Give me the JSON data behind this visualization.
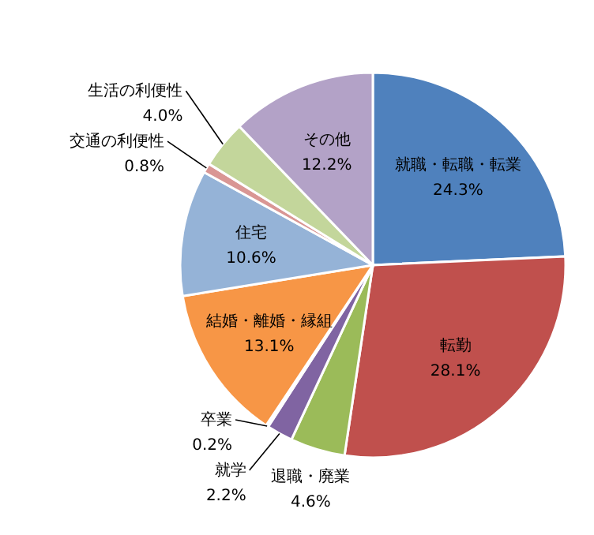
{
  "chart_data": {
    "type": "pie",
    "categories": [
      "就職・転職・転業",
      "転勤",
      "退職・廃業",
      "就学",
      "卒業",
      "結婚・離婚・縁組",
      "住宅",
      "交通の利便性",
      "生活の利便性",
      "その他"
    ],
    "values": [
      24.3,
      28.1,
      4.6,
      2.2,
      0.2,
      13.1,
      10.6,
      0.8,
      4.0,
      12.2
    ],
    "colors": [
      "#4f81bd",
      "#c0504d",
      "#9bbb59",
      "#8064a2",
      "#4bacc6",
      "#f79646",
      "#95b3d7",
      "#d99694",
      "#c3d69b",
      "#b3a2c7"
    ],
    "value_labels": [
      "24.3%",
      "28.1%",
      "4.6%",
      "2.2%",
      "0.2%",
      "13.1%",
      "10.6%",
      "0.8%",
      "4.0%",
      "12.2%"
    ]
  }
}
